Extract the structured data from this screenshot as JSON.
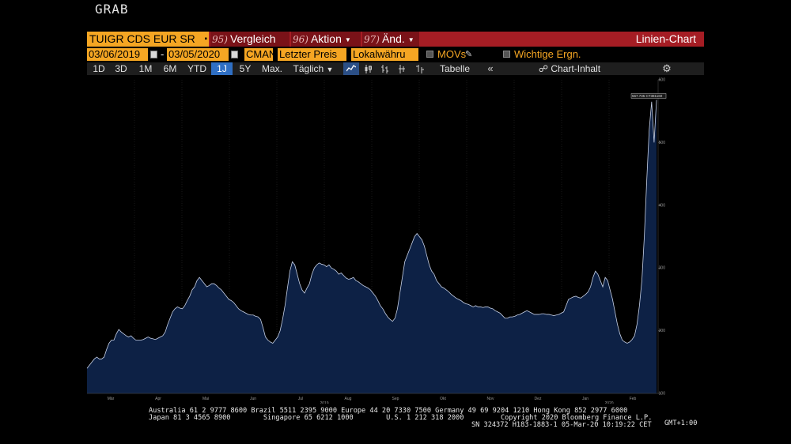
{
  "grab_label": "GRAB",
  "command_bar": {
    "ticker": "TUIGR CDS EUR SR",
    "menus": [
      {
        "num": "95)",
        "label": "Vergleich"
      },
      {
        "num": "96)",
        "label": "Aktion"
      },
      {
        "num": "97)",
        "label": "Änd."
      }
    ],
    "chart_type": "Linien-Chart"
  },
  "settings_bar": {
    "start_date": "03/06/2019",
    "end_date": "03/05/2020",
    "source": "CMAN",
    "price_field": "Letzter Preis",
    "currency": "Lokalwähru",
    "movs_label": "MOVs",
    "events_label": "Wichtige Ergn."
  },
  "toolbar": {
    "periods": [
      "1D",
      "3D",
      "1M",
      "6M",
      "YTD",
      "1J",
      "5Y",
      "Max."
    ],
    "active_period": "1J",
    "frequency": "Täglich",
    "table_label": "Tabelle",
    "chart_content_label": "Chart-Inhalt"
  },
  "colors": {
    "command_bar": "#a51d24",
    "orange": "#f5a623",
    "active_blue": "#2f6fc4",
    "area_fill": "#0d2145",
    "area_line": "#c6d0e6"
  },
  "chart_data": {
    "type": "area",
    "title": "",
    "xlabel": "",
    "ylabel": "",
    "ylim": [
      100,
      600
    ],
    "y_ticks": [
      100,
      200,
      300,
      400,
      500,
      600
    ],
    "x_month_labels": [
      "Mär",
      "Apr",
      "Mai",
      "Jun",
      "Jul",
      "Aug",
      "Sep",
      "Okt",
      "Nov",
      "Dez",
      "Jan",
      "Feb"
    ],
    "x_year_labels": [
      {
        "label": "2019",
        "under": "Aug"
      },
      {
        "label": "2020",
        "under": "Feb"
      }
    ],
    "last_value_label": "567.735 CT381160",
    "series": [
      {
        "values": [
          140,
          145,
          150,
          155,
          158,
          155,
          155,
          158,
          170,
          180,
          185,
          185,
          195,
          202,
          198,
          195,
          192,
          190,
          192,
          188,
          185,
          185,
          185,
          186,
          188,
          190,
          188,
          187,
          186,
          188,
          190,
          192,
          198,
          210,
          220,
          230,
          235,
          238,
          236,
          235,
          240,
          248,
          255,
          265,
          270,
          280,
          285,
          280,
          275,
          270,
          272,
          275,
          275,
          272,
          268,
          265,
          260,
          255,
          250,
          248,
          245,
          240,
          235,
          232,
          230,
          228,
          226,
          225,
          225,
          223,
          222,
          218,
          205,
          190,
          185,
          182,
          180,
          185,
          190,
          200,
          218,
          240,
          268,
          295,
          310,
          305,
          290,
          275,
          265,
          260,
          268,
          275,
          290,
          300,
          305,
          308,
          306,
          305,
          302,
          305,
          300,
          298,
          295,
          290,
          292,
          288,
          284,
          282,
          283,
          285,
          280,
          278,
          275,
          272,
          270,
          268,
          265,
          260,
          255,
          248,
          240,
          235,
          228,
          222,
          218,
          215,
          220,
          235,
          260,
          285,
          310,
          320,
          330,
          340,
          350,
          355,
          350,
          345,
          335,
          320,
          305,
          295,
          290,
          280,
          275,
          270,
          268,
          265,
          262,
          258,
          255,
          252,
          250,
          248,
          245,
          243,
          242,
          240,
          238,
          240,
          238,
          238,
          237,
          238,
          238,
          236,
          235,
          232,
          230,
          228,
          224,
          220,
          220,
          222,
          222,
          223,
          225,
          226,
          228,
          230,
          232,
          230,
          228,
          226,
          226,
          226,
          227,
          227,
          226,
          226,
          225,
          224,
          225,
          226,
          228,
          230,
          240,
          250,
          252,
          254,
          255,
          253,
          252,
          255,
          258,
          262,
          270,
          285,
          295,
          290,
          280,
          270,
          285,
          280,
          265,
          250,
          230,
          210,
          195,
          185,
          182,
          180,
          182,
          186,
          192,
          210,
          240,
          280,
          350,
          440,
          520,
          565,
          500,
          568
        ]
      }
    ]
  },
  "footer": {
    "line1": "Australia 61 2 9777 8600 Brazil 5511 2395 9000 Europe 44 20 7330 7500 Germany 49 69 9204 1210 Hong Kong 852 2977 6000",
    "line2": "Japan 81 3 4565 8900        Singapore 65 6212 1000        U.S. 1 212 318 2000         Copyright 2020 Bloomberg Finance L.P.",
    "line3": "SN 324372 H183-1883-1 05-Mar-20 10:19:22 CET",
    "timezone": "GMT+1:00"
  }
}
